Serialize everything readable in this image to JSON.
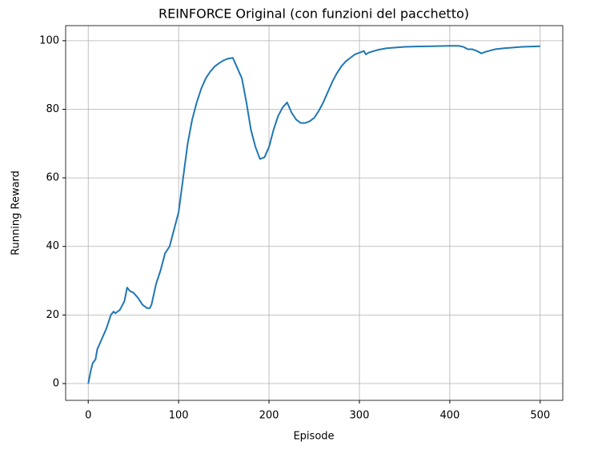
{
  "chart_data": {
    "type": "line",
    "title": "REINFORCE Original (con funzioni del pacchetto)",
    "xlabel": "Episode",
    "ylabel": "Running Reward",
    "x": [
      0,
      3,
      5,
      8,
      10,
      15,
      20,
      25,
      28,
      30,
      35,
      40,
      43,
      46,
      50,
      55,
      60,
      65,
      68,
      70,
      75,
      80,
      85,
      90,
      95,
      100,
      105,
      110,
      115,
      120,
      125,
      130,
      135,
      140,
      145,
      150,
      155,
      160,
      165,
      170,
      175,
      180,
      185,
      190,
      195,
      200,
      205,
      210,
      215,
      220,
      225,
      230,
      235,
      240,
      245,
      250,
      255,
      260,
      265,
      270,
      275,
      280,
      285,
      290,
      295,
      300,
      305,
      307,
      310,
      320,
      330,
      340,
      350,
      360,
      380,
      400,
      410,
      415,
      420,
      425,
      430,
      435,
      440,
      450,
      460,
      470,
      480,
      490,
      500
    ],
    "values": [
      0,
      4,
      6,
      7,
      10,
      13,
      16,
      20,
      21,
      20.5,
      21.5,
      24,
      28,
      27,
      26.5,
      25,
      23,
      22,
      22,
      23,
      29,
      33,
      38,
      40,
      45,
      50,
      60,
      70,
      77,
      82,
      86,
      89,
      91,
      92.5,
      93.5,
      94.3,
      94.8,
      95,
      92,
      89,
      82,
      74,
      69,
      65.5,
      66,
      69,
      74,
      78,
      80.5,
      82,
      79,
      77,
      76,
      76,
      76.5,
      77.5,
      79.5,
      82,
      85,
      88,
      90.5,
      92.5,
      94,
      95,
      96,
      96.5,
      97,
      96,
      96.5,
      97.3,
      97.8,
      98,
      98.2,
      98.3,
      98.4,
      98.5,
      98.5,
      98.2,
      97.5,
      97.5,
      97,
      96.3,
      96.8,
      97.5,
      97.8,
      98,
      98.2,
      98.3,
      98.4
    ],
    "color": "#1f77b4",
    "xlim": [
      -25,
      525
    ],
    "ylim": [
      -4.9,
      104.4
    ],
    "xticks": [
      0,
      100,
      200,
      300,
      400,
      500
    ],
    "yticks": [
      0,
      20,
      40,
      60,
      80,
      100
    ],
    "grid": true
  }
}
